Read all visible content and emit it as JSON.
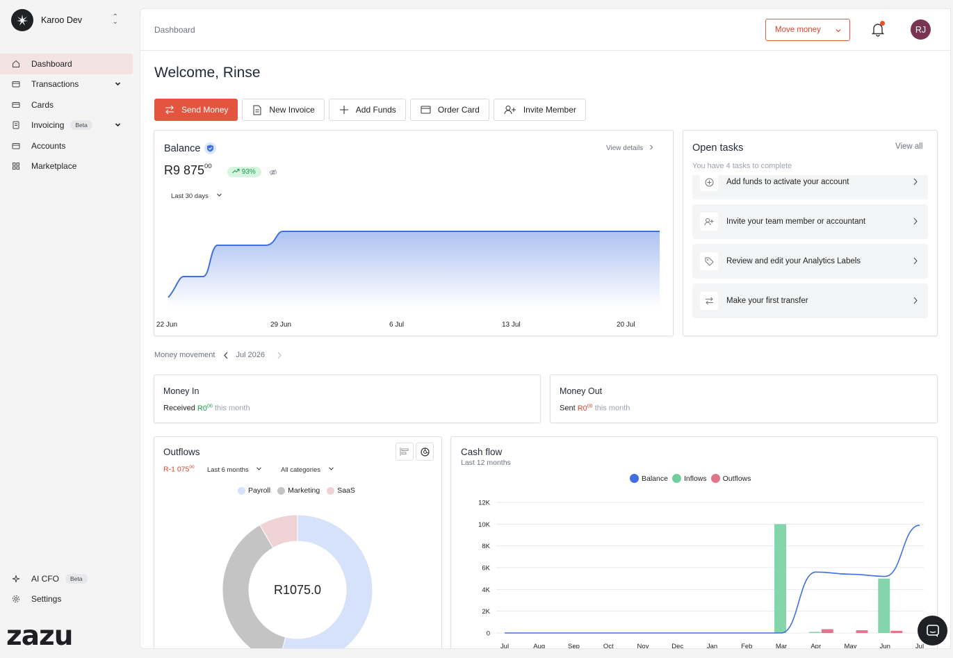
{
  "org": {
    "name": "Karoo Dev"
  },
  "nav": [
    {
      "label": "Dashboard",
      "icon": "home-icon"
    },
    {
      "label": "Transactions",
      "icon": "wallet-icon"
    },
    {
      "label": "Cards",
      "icon": "card-icon"
    },
    {
      "label": "Invoicing",
      "icon": "invoice-icon",
      "badge": "Beta"
    },
    {
      "label": "Accounts",
      "icon": "accounts-icon"
    },
    {
      "label": "Marketplace",
      "icon": "grid-icon"
    }
  ],
  "nav_bottom": [
    {
      "label": "AI CFO",
      "icon": "sparkle-icon",
      "badge": "Beta"
    },
    {
      "label": "Settings",
      "icon": "gear-icon"
    }
  ],
  "brand": "zazu",
  "topbar": {
    "breadcrumb": "Dashboard",
    "move_money": "Move money",
    "avatar_initials": "RJ"
  },
  "welcome": "Welcome, Rinse",
  "actions": [
    "Send Money",
    "New Invoice",
    "Add Funds",
    "Order Card",
    "Invite Member"
  ],
  "balance": {
    "title": "Balance",
    "view_details": "View details",
    "amount": "R9 875",
    "cents": "00",
    "change": "93%",
    "range": "Last 30 days",
    "x_labels": [
      "22 Jun",
      "29 Jun",
      "6 Jul",
      "13 Jul",
      "20 Jul"
    ]
  },
  "tasks": {
    "title": "Open tasks",
    "view_all": "View all",
    "subtitle": "You have 4 tasks to complete",
    "items": [
      "Add funds to activate your account",
      "Invite your team member or accountant",
      "Review and edit your Analytics Labels",
      "Make your first transfer"
    ]
  },
  "money_movement": {
    "label": "Money movement",
    "period": "Jul 2026"
  },
  "money_in": {
    "title": "Money In",
    "prefix": "Received",
    "amount": "R0",
    "cents": "00",
    "suffix": "this month"
  },
  "money_out": {
    "title": "Money Out",
    "prefix": "Sent",
    "amount": "R0",
    "cents": "00",
    "suffix": "this month"
  },
  "outflows": {
    "title": "Outflows",
    "amount": "R-1 075",
    "cents": "00",
    "period": "Last 6 months",
    "category": "All categories",
    "center": "R1075.0",
    "legend": [
      {
        "name": "Payroll",
        "color": "#d6e2fa"
      },
      {
        "name": "Marketing",
        "color": "#c4c4c4"
      },
      {
        "name": "SaaS",
        "color": "#efd3d4"
      }
    ]
  },
  "cashflow": {
    "title": "Cash flow",
    "subtitle": "Last 12 months",
    "legend": [
      {
        "name": "Balance",
        "color": "#3f6fe0"
      },
      {
        "name": "Inflows",
        "color": "#6fcf9f"
      },
      {
        "name": "Outflows",
        "color": "#e0768a"
      }
    ]
  },
  "chart_data": [
    {
      "type": "line",
      "title": "Balance",
      "x": [
        "22 Jun",
        "29 Jun",
        "6 Jul",
        "13 Jul",
        "20 Jul"
      ],
      "series": [
        {
          "values": [
            0,
            9875,
            9875,
            9875,
            9875
          ]
        }
      ]
    },
    {
      "type": "pie",
      "title": "Outflows",
      "categories": [
        "Payroll",
        "Marketing",
        "SaaS"
      ],
      "values": [
        580,
        405,
        90
      ]
    },
    {
      "type": "bar",
      "title": "Cash flow",
      "categories": [
        "Jul",
        "Aug",
        "Sep",
        "Oct",
        "Nov",
        "Dec",
        "Jan",
        "Feb",
        "Mar",
        "Apr",
        "May",
        "Jun",
        "Jul"
      ],
      "series": [
        {
          "name": "Inflows",
          "values": [
            0,
            0,
            0,
            0,
            0,
            0,
            0,
            0,
            10000,
            100,
            0,
            5000,
            0
          ]
        },
        {
          "name": "Outflows",
          "values": [
            0,
            0,
            0,
            0,
            0,
            0,
            0,
            0,
            0,
            350,
            250,
            200,
            0
          ]
        },
        {
          "name": "Balance",
          "values": [
            0,
            0,
            0,
            0,
            0,
            0,
            0,
            0,
            0,
            5600,
            5400,
            5200,
            9900
          ]
        }
      ],
      "yticks": [
        "0",
        "2K",
        "4K",
        "6K",
        "8K",
        "10K",
        "12K"
      ],
      "ylim": [
        0,
        12000
      ]
    }
  ]
}
